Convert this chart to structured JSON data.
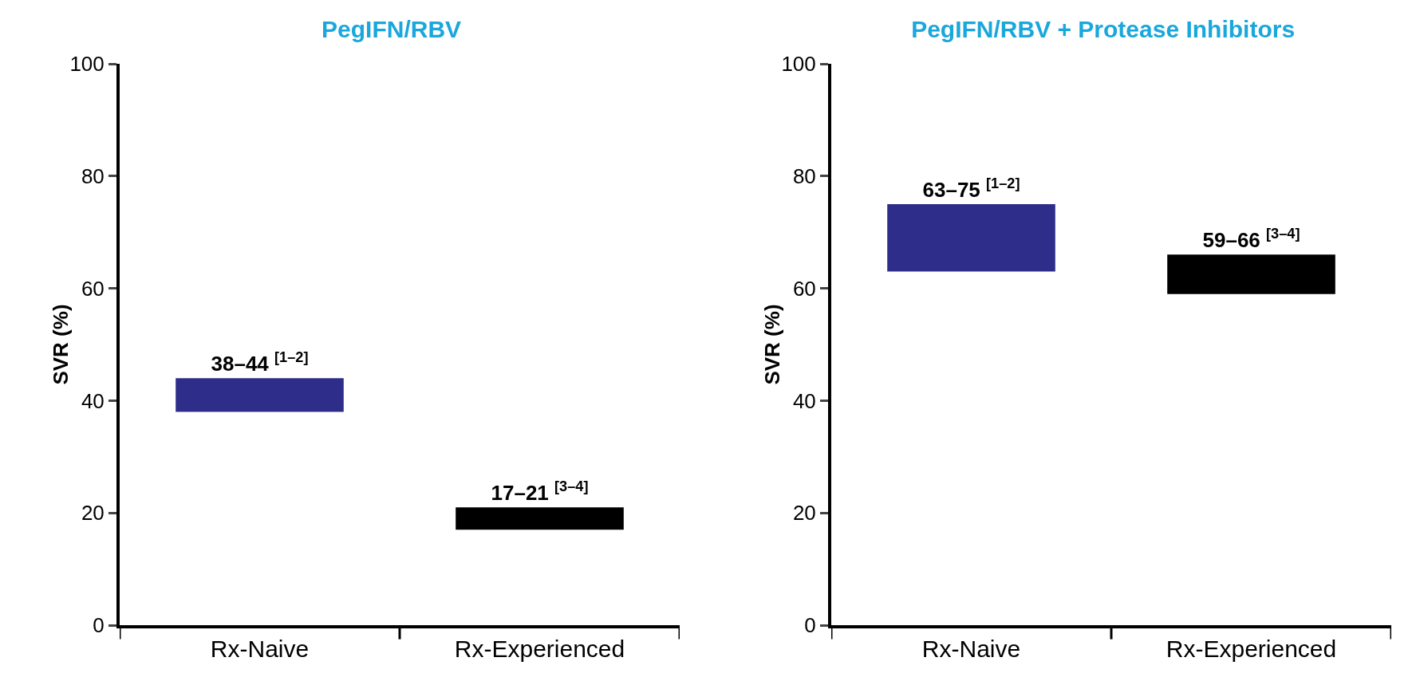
{
  "chart_data": [
    {
      "type": "bar",
      "title": "PegIFN/RBV",
      "ylabel": "SVR (%)",
      "categories": [
        "Rx-Naive",
        "Rx-Experienced"
      ],
      "base": [
        38,
        17
      ],
      "values": [
        6,
        4
      ],
      "colors": [
        "#2e2e8a",
        "#000000"
      ],
      "value_labels": [
        "38–44 $^{[1–2]}$",
        "17–21 $^{[3–4]}$"
      ],
      "ylim": [
        0,
        100
      ],
      "yticks": [
        0,
        20,
        40,
        60,
        80,
        100
      ],
      "grid": false
    },
    {
      "type": "bar",
      "title": "PegIFN/RBV + Protease Inhibitors",
      "ylabel": "SVR (%)",
      "categories": [
        "Rx-Naive",
        "Rx-Experienced"
      ],
      "base": [
        63,
        59
      ],
      "values": [
        12,
        7
      ],
      "colors": [
        "#2e2e8a",
        "#000000"
      ],
      "value_labels": [
        "63–75 $^{[1–2]}$",
        "59–66 $^{[3–4]}$"
      ],
      "ylim": [
        0,
        100
      ],
      "yticks": [
        0,
        20,
        40,
        60,
        80,
        100
      ],
      "grid": false
    }
  ]
}
